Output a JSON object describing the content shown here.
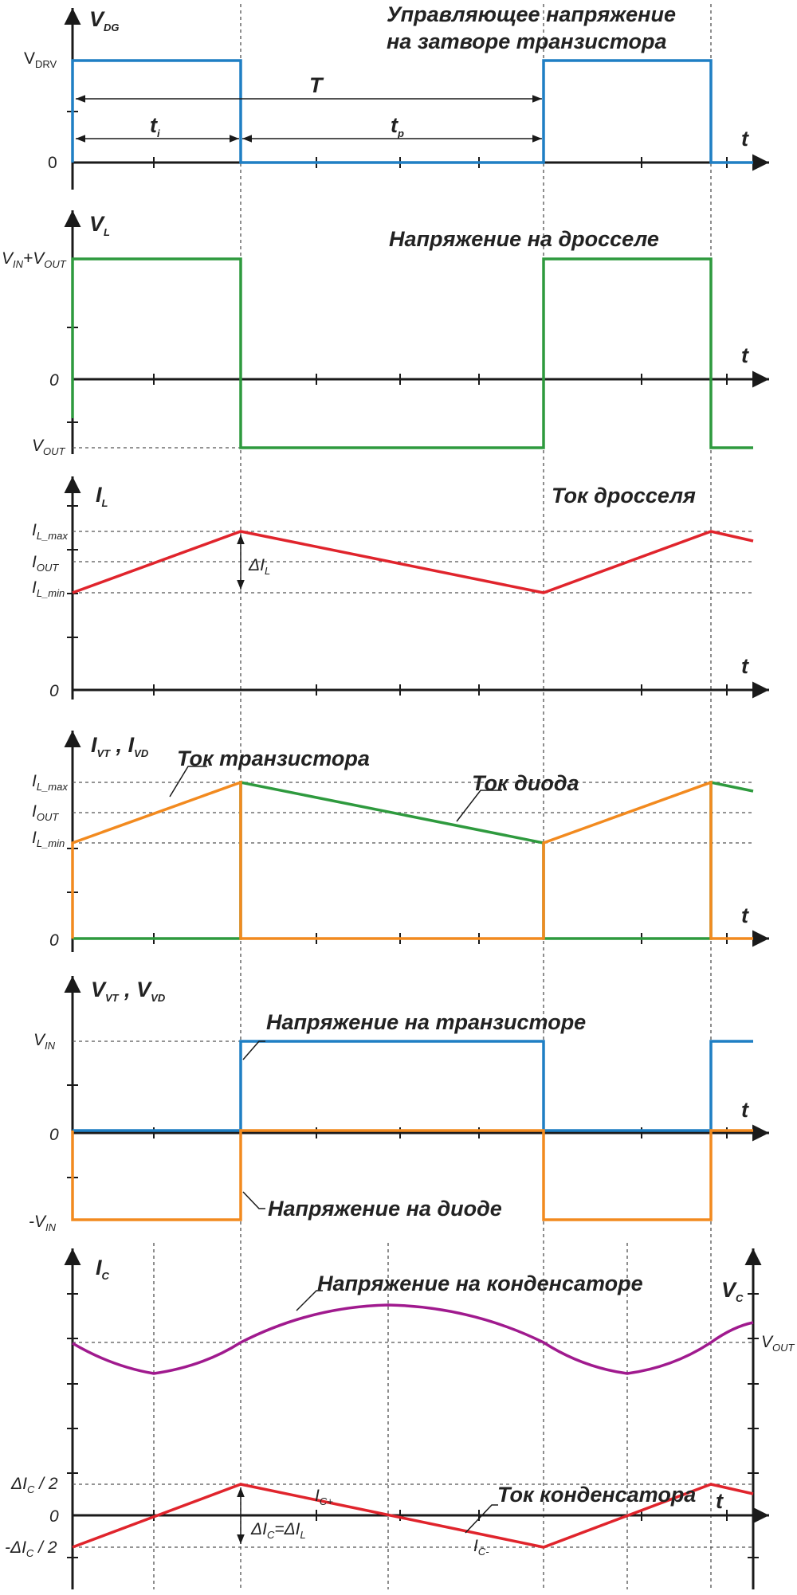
{
  "panels": {
    "gate": {
      "axis_label": "V",
      "axis_label_sub": "DG",
      "title_line1": "Управляющее напряжение",
      "title_line2": "на затворе транзистора",
      "level_high": "V",
      "level_high_sub": "DRV",
      "level_zero": "0",
      "period_label": "T",
      "ti_label": "t",
      "ti_sub": "i",
      "tp_label": "t",
      "tp_sub": "p",
      "time_label": "t",
      "color": "#1f7fc4"
    },
    "inductor_voltage": {
      "axis_label": "V",
      "axis_label_sub": "L",
      "title": "Напряжение на дросселе",
      "level_high_a": "V",
      "level_high_a_sub": "IN",
      "level_high_b": "+V",
      "level_high_b_sub": "OUT",
      "level_zero": "0",
      "level_low": "V",
      "level_low_sub": "OUT",
      "time_label": "t",
      "color": "#2e9a3e"
    },
    "inductor_current": {
      "axis_label": "I",
      "axis_label_sub": "L",
      "title": "Ток дросселя",
      "level_max": "I",
      "level_max_sub": "L_max",
      "level_out": "I",
      "level_out_sub": "OUT",
      "level_min": "I",
      "level_min_sub": "L_min",
      "delta_label": "ΔI",
      "delta_sub": "L",
      "level_zero": "0",
      "time_label": "t",
      "color": "#e0242c"
    },
    "switch_currents": {
      "axis_label_a": "I",
      "axis_label_a_sub": "VT",
      "axis_label_sep": " , ",
      "axis_label_b": "I",
      "axis_label_b_sub": "VD",
      "transistor_label": "Ток транзистора",
      "diode_label": "Ток диода",
      "level_max": "I",
      "level_max_sub": "L_max",
      "level_out": "I",
      "level_out_sub": "OUT",
      "level_min": "I",
      "level_min_sub": "L_min",
      "level_zero": "0",
      "time_label": "t",
      "transistor_color": "#f28a1f",
      "diode_color": "#2e9a3e"
    },
    "switch_voltages": {
      "axis_label_a": "V",
      "axis_label_a_sub": "VT",
      "axis_label_sep": " , ",
      "axis_label_b": "V",
      "axis_label_b_sub": "VD",
      "transistor_label": "Напряжение на транзисторе",
      "diode_label": "Напряжение на диоде",
      "level_high": "V",
      "level_high_sub": "IN",
      "level_zero": "0",
      "level_low": "-V",
      "level_low_sub": "IN",
      "time_label": "t",
      "transistor_color": "#1f7fc4",
      "diode_color": "#f28a1f"
    },
    "capacitor": {
      "axis_label_left": "I",
      "axis_label_left_sub": "C",
      "axis_label_right": "V",
      "axis_label_right_sub": "C",
      "voltage_label": "Напряжение на конденсаторе",
      "current_label": "Ток конденсатора",
      "vout_label": "V",
      "vout_sub": "OUT",
      "level_plus": "ΔI",
      "level_plus_sub": "C",
      "level_plus_tail": " / 2",
      "level_zero": "0",
      "level_minus": "-ΔI",
      "level_minus_sub": "C",
      "level_minus_tail": " / 2",
      "icplus_label": "I",
      "icplus_sub": "C+",
      "icminus_label": "I",
      "icminus_sub": "C-",
      "delta_a": "ΔI",
      "delta_a_sub": "C",
      "delta_eq": "=ΔI",
      "delta_b_sub": "L",
      "time_label": "t",
      "voltage_color": "#a01a8e",
      "current_color": "#e0242c"
    }
  }
}
